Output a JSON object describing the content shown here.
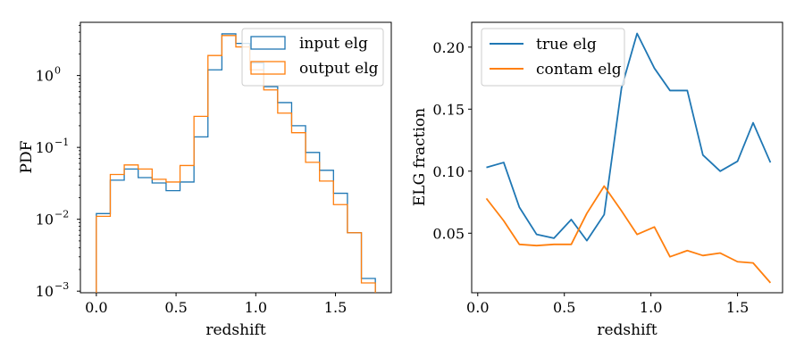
{
  "chart_data": [
    {
      "type": "histogram-step",
      "xlabel": "redshift",
      "ylabel": "PDF",
      "yscale": "log",
      "xlim": [
        -0.1,
        1.85
      ],
      "ylim": [
        0.00095,
        5.5
      ],
      "xticks": [
        0.0,
        0.5,
        1.0,
        1.5
      ],
      "xtick_labels": [
        "0.0",
        "0.5",
        "1.0",
        "1.5"
      ],
      "yticks": [
        0.001,
        0.01,
        0.1,
        1
      ],
      "ytick_labels": [
        "10",
        "10",
        "10",
        "10"
      ],
      "ytick_exponents": [
        "−3",
        "−2",
        "−1",
        "0"
      ],
      "legend_position": "upper right",
      "bin_edges": [
        0.0,
        0.0875,
        0.175,
        0.2625,
        0.35,
        0.4375,
        0.525,
        0.6125,
        0.7,
        0.7875,
        0.875,
        0.9625,
        1.05,
        1.1375,
        1.225,
        1.3125,
        1.4,
        1.4875,
        1.575,
        1.6625,
        1.75
      ],
      "series": [
        {
          "name": "input elg",
          "color": "#1f77b4",
          "values": [
            0.012,
            0.035,
            0.05,
            0.038,
            0.032,
            0.025,
            0.033,
            0.14,
            1.2,
            3.8,
            2.8,
            1.5,
            0.7,
            0.42,
            0.2,
            0.085,
            0.048,
            0.023,
            0.0065,
            0.0015
          ]
        },
        {
          "name": "output elg",
          "color": "#ff7f0e",
          "values": [
            0.011,
            0.042,
            0.057,
            0.05,
            0.036,
            0.033,
            0.056,
            0.27,
            1.9,
            3.6,
            2.5,
            1.2,
            0.63,
            0.3,
            0.16,
            0.062,
            0.034,
            0.016,
            0.0065,
            0.0013
          ]
        }
      ]
    },
    {
      "type": "line",
      "xlabel": "redshift",
      "ylabel": "ELG fraction",
      "xlim": [
        -0.035,
        1.76
      ],
      "ylim": [
        0.002,
        0.22
      ],
      "xticks": [
        0.0,
        0.5,
        1.0,
        1.5
      ],
      "xtick_labels": [
        "0.0",
        "0.5",
        "1.0",
        "1.5"
      ],
      "yticks": [
        0.05,
        0.1,
        0.15,
        0.2
      ],
      "ytick_labels": [
        "0.05",
        "0.10",
        "0.15",
        "0.20"
      ],
      "legend_position": "upper left",
      "x": [
        0.05,
        0.15,
        0.24,
        0.34,
        0.44,
        0.54,
        0.63,
        0.73,
        0.83,
        0.92,
        1.02,
        1.11,
        1.21,
        1.3,
        1.4,
        1.5,
        1.59,
        1.69
      ],
      "series": [
        {
          "name": "true elg",
          "color": "#1f77b4",
          "values": [
            0.103,
            0.107,
            0.071,
            0.049,
            0.046,
            0.061,
            0.044,
            0.065,
            0.167,
            0.211,
            0.183,
            0.165,
            0.165,
            0.113,
            0.1,
            0.108,
            0.139,
            0.107
          ]
        },
        {
          "name": "contam elg",
          "color": "#ff7f0e",
          "values": [
            0.078,
            0.06,
            0.041,
            0.04,
            0.041,
            0.041,
            0.066,
            0.088,
            0.068,
            0.049,
            0.055,
            0.031,
            0.036,
            0.032,
            0.034,
            0.027,
            0.026,
            0.01
          ]
        }
      ]
    }
  ]
}
